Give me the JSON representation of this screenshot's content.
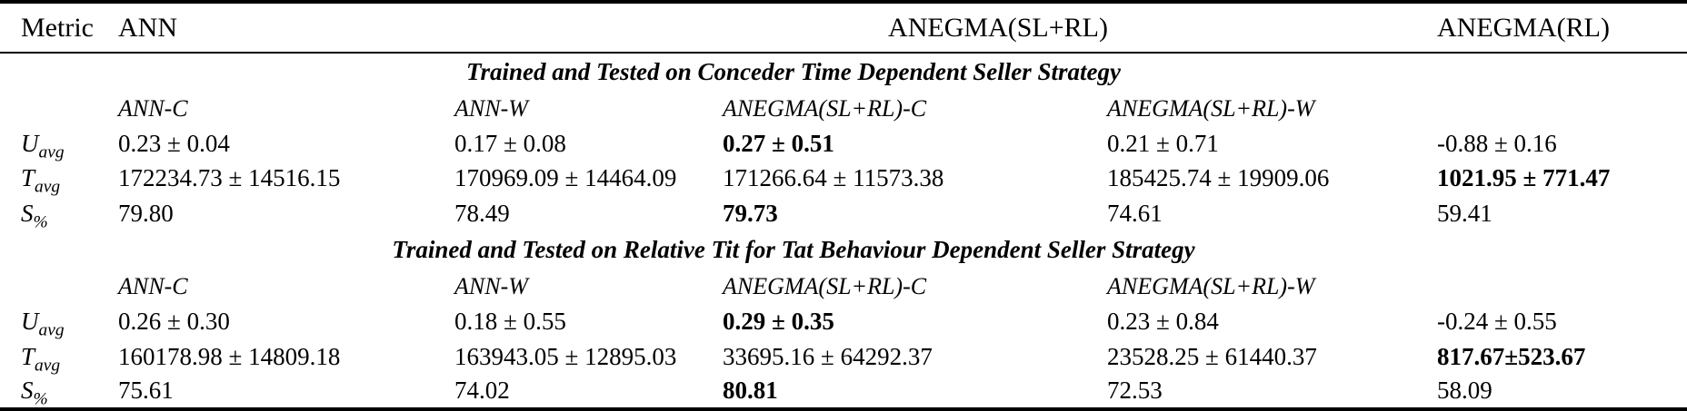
{
  "table": {
    "header": {
      "metric": "Metric",
      "ann": "ANN",
      "anegma_slrl": "ANEGMA(SL+RL)",
      "anegma_rl": "ANEGMA(RL)"
    },
    "sections": [
      {
        "title": "Trained and Tested on Conceder Time Dependent Seller Strategy",
        "subheaders": [
          "ANN-C",
          "ANN-W",
          "ANEGMA(SL+RL)-C",
          "ANEGMA(SL+RL)-W"
        ],
        "rows": [
          {
            "metric_base": "U",
            "metric_sub": "avg",
            "values": [
              "0.23 ± 0.04",
              "0.17 ± 0.08",
              "0.27 ± 0.51",
              "0.21 ± 0.71",
              "-0.88 ± 0.16"
            ],
            "bold": [
              2
            ]
          },
          {
            "metric_base": "T",
            "metric_sub": "avg",
            "values": [
              "172234.73 ± 14516.15",
              "170969.09 ± 14464.09",
              "171266.64 ± 11573.38",
              "185425.74 ± 19909.06",
              "1021.95 ± 771.47"
            ],
            "bold": [
              4
            ]
          },
          {
            "metric_base": "S",
            "metric_sub": "%",
            "values": [
              "79.80",
              "78.49",
              "79.73",
              "74.61",
              "59.41"
            ],
            "bold": [
              2
            ]
          }
        ]
      },
      {
        "title": "Trained and Tested on Relative Tit for Tat Behaviour Dependent Seller Strategy",
        "subheaders": [
          "ANN-C",
          "ANN-W",
          "ANEGMA(SL+RL)-C",
          "ANEGMA(SL+RL)-W"
        ],
        "rows": [
          {
            "metric_base": "U",
            "metric_sub": "avg",
            "values": [
              "0.26 ± 0.30",
              "0.18 ± 0.55",
              "0.29 ± 0.35",
              "0.23 ± 0.84",
              "-0.24 ± 0.55"
            ],
            "bold": [
              2
            ]
          },
          {
            "metric_base": "T",
            "metric_sub": "avg",
            "values": [
              "160178.98 ± 14809.18",
              "163943.05 ± 12895.03",
              "33695.16 ± 64292.37",
              "23528.25 ± 61440.37",
              "817.67±523.67"
            ],
            "bold": [
              4
            ]
          },
          {
            "metric_base": "S",
            "metric_sub": "%",
            "values": [
              "75.61",
              "74.02",
              "80.81",
              "72.53",
              "58.09"
            ],
            "bold": [
              2
            ]
          }
        ]
      }
    ]
  }
}
